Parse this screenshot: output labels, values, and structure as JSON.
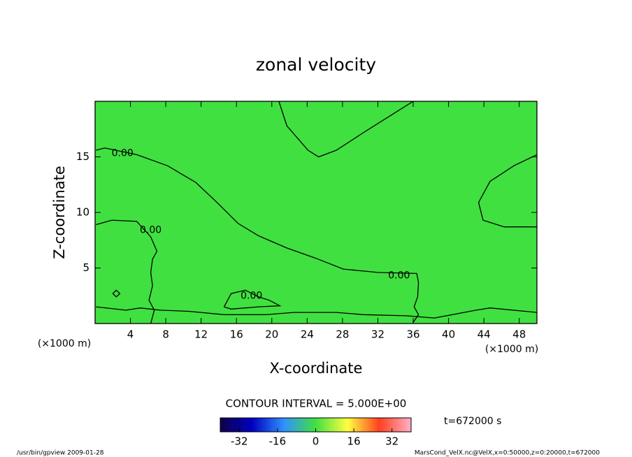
{
  "chart_data": {
    "type": "contour",
    "title": "zonal velocity",
    "xlabel": "X-coordinate",
    "ylabel": "Z-coordinate",
    "x_unit_label": "(×1000 m)",
    "xlim": [
      0,
      50
    ],
    "ylim": [
      0,
      20
    ],
    "xticks": [
      4,
      8,
      12,
      16,
      20,
      24,
      28,
      32,
      36,
      40,
      44,
      48
    ],
    "yticks": [
      5,
      10,
      15
    ],
    "field_value": 0,
    "colormap": [
      "#10004a",
      "#0000c0",
      "#3090ff",
      "#40e040",
      "#ffff40",
      "#ff4020",
      "#ffb0c8"
    ],
    "clim": [
      -40,
      40
    ],
    "colorbar_ticks": [
      -32,
      -16,
      0,
      16,
      32
    ],
    "contours": [
      {
        "level": 0,
        "x": [
          0.1,
          1.1,
          4.7,
          8.2,
          11.4,
          13.8,
          16.2,
          18.5,
          21.7,
          24.9,
          28.1,
          32.0,
          36.4,
          36.6,
          36.5,
          36.1,
          36.6,
          36.0
        ],
        "y": [
          15.6,
          15.8,
          15.2,
          14.2,
          12.7,
          10.9,
          9.0,
          7.9,
          6.8,
          5.9,
          4.9,
          4.6,
          4.5,
          3.7,
          2.4,
          1.5,
          0.8,
          0.1
        ]
      },
      {
        "level": 0,
        "x": [
          20.8,
          21.7,
          24.1,
          25.3,
          27.3,
          30.4,
          33.6,
          36.0
        ],
        "y": [
          20,
          17.8,
          15.6,
          15.0,
          15.6,
          17.2,
          18.8,
          20
        ]
      },
      {
        "level": 0,
        "x": [
          50,
          47.4,
          44.7,
          43.4,
          43.9,
          46.3,
          50
        ],
        "y": [
          15.2,
          14.2,
          12.8,
          10.9,
          9.3,
          8.7,
          8.7
        ]
      },
      {
        "level": 0,
        "x": [
          0.1,
          1.9,
          4.7,
          6.3,
          7.0,
          6.5,
          6.3,
          6.5,
          6.1,
          6.7,
          6.3
        ],
        "y": [
          8.9,
          9.3,
          9.2,
          7.8,
          6.5,
          5.8,
          4.6,
          3.4,
          2.1,
          1.2,
          0.0
        ]
      },
      {
        "level": 0,
        "x": [
          0.1,
          3.5,
          5.1,
          7.4,
          10.6,
          14.6,
          19.3,
          22.5,
          27.3,
          30.4,
          35.2,
          38.4,
          43.1,
          44.7,
          50
        ],
        "y": [
          1.5,
          1.2,
          1.4,
          1.2,
          1.1,
          0.8,
          0.8,
          1.0,
          1.0,
          0.8,
          0.7,
          0.5,
          1.2,
          1.4,
          1.0
        ]
      },
      {
        "level": 0,
        "x": [
          14.6,
          15.4,
          17.0,
          18.5,
          19.7,
          20.9,
          18.5,
          15.4,
          14.6
        ],
        "y": [
          1.5,
          2.7,
          3.0,
          2.4,
          2.1,
          1.6,
          1.5,
          1.3,
          1.5
        ]
      },
      {
        "level": 0,
        "x": [
          2.0,
          2.4,
          2.8,
          2.4,
          2.0
        ],
        "y": [
          2.7,
          3.0,
          2.7,
          2.4,
          2.7
        ]
      }
    ],
    "contour_labels": [
      {
        "text": "0.00",
        "x": 3.1,
        "y": 15.3
      },
      {
        "text": "0.00",
        "x": 6.3,
        "y": 8.4
      },
      {
        "text": "0.00",
        "x": 34.4,
        "y": 4.3
      },
      {
        "text": "0.00",
        "x": 17.7,
        "y": 2.5
      }
    ],
    "contour_interval_text": "CONTOUR INTERVAL = 5.000E+00",
    "time_label": "t=672000 s",
    "footer_left": "/usr/bin/gpview   2009-01-28",
    "footer_right": "MarsCond_VelX.nc@VelX,x=0:50000,z=0:20000,t=672000"
  }
}
